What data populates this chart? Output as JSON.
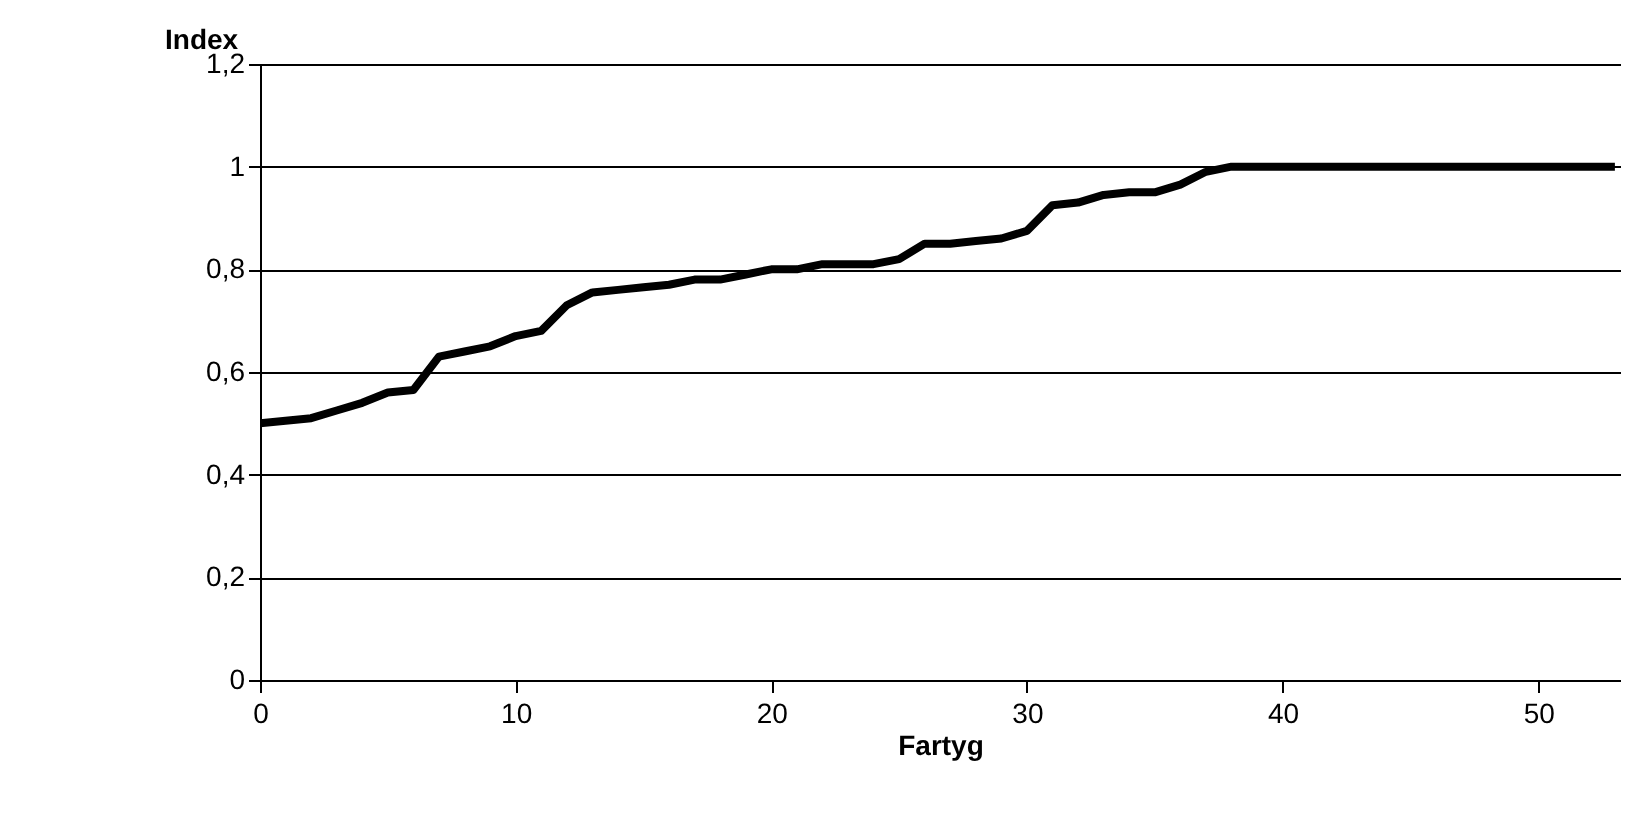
{
  "chart_data": {
    "type": "line",
    "xlabel": "Fartyg",
    "ylabel": "Index",
    "x": [
      0,
      1,
      2,
      3,
      4,
      5,
      6,
      7,
      8,
      9,
      10,
      11,
      12,
      13,
      14,
      15,
      16,
      17,
      18,
      19,
      20,
      21,
      22,
      23,
      24,
      25,
      26,
      27,
      28,
      29,
      30,
      31,
      32,
      33,
      34,
      35,
      36,
      37,
      38,
      39,
      40,
      41,
      42,
      43,
      44,
      45,
      46,
      47,
      48,
      49,
      50,
      51,
      52,
      53
    ],
    "series": [
      {
        "color": "#000000",
        "values": [
          0.5,
          0.505,
          0.51,
          0.525,
          0.54,
          0.56,
          0.565,
          0.63,
          0.64,
          0.65,
          0.67,
          0.68,
          0.73,
          0.755,
          0.76,
          0.765,
          0.77,
          0.78,
          0.78,
          0.79,
          0.8,
          0.8,
          0.81,
          0.81,
          0.81,
          0.82,
          0.85,
          0.85,
          0.855,
          0.86,
          0.875,
          0.925,
          0.93,
          0.945,
          0.95,
          0.95,
          0.965,
          0.99,
          1,
          1,
          1,
          1,
          1,
          1,
          1,
          1,
          1,
          1,
          1,
          1,
          1,
          1,
          1,
          1
        ]
      }
    ],
    "xlim": [
      0,
      53.2
    ],
    "xticks": [
      0,
      10,
      20,
      30,
      40,
      50
    ],
    "ylim": [
      0,
      1.2
    ],
    "yticks": [
      {
        "value": 0,
        "label": "0"
      },
      {
        "value": 0.2,
        "label": "0,2"
      },
      {
        "value": 0.4,
        "label": "0,4"
      },
      {
        "value": 0.6,
        "label": "0,6"
      },
      {
        "value": 0.8,
        "label": "0,8"
      },
      {
        "value": 1,
        "label": "1"
      },
      {
        "value": 1.2,
        "label": "1,2"
      }
    ],
    "grid": "y",
    "marker": "none",
    "line_style": "solid"
  }
}
